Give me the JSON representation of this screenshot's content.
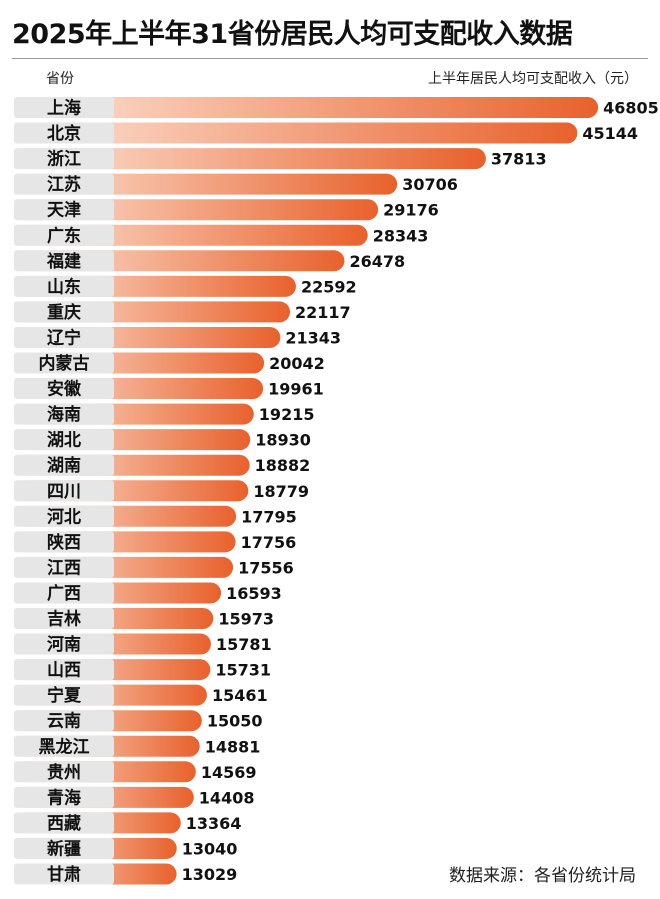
{
  "title": "2025年上半年31省份居民人均可支配收入数据",
  "header": {
    "category_label": "省份",
    "value_label": "上半年居民人均可支配收入（元）"
  },
  "source": "数据来源：各省份统计局",
  "colors": {
    "bar_start": "#fde6d8",
    "bar_end": "#e8612c",
    "label_bg": "#e6e6e6",
    "text": "#111111"
  },
  "chart_data": {
    "type": "bar",
    "orientation": "horizontal",
    "title": "2025年上半年31省份居民人均可支配收入数据",
    "xlabel": "省份",
    "ylabel": "上半年居民人均可支配收入（元）",
    "grid": false,
    "categories": [
      "上海",
      "北京",
      "浙江",
      "江苏",
      "天津",
      "广东",
      "福建",
      "山东",
      "重庆",
      "辽宁",
      "内蒙古",
      "安徽",
      "海南",
      "湖北",
      "湖南",
      "四川",
      "河北",
      "陕西",
      "江西",
      "广西",
      "吉林",
      "河南",
      "山西",
      "宁夏",
      "云南",
      "黑龙江",
      "贵州",
      "青海",
      "西藏",
      "新疆",
      "甘肃"
    ],
    "values": [
      46805,
      45144,
      37813,
      30706,
      29176,
      28343,
      26478,
      22592,
      22117,
      21343,
      20042,
      19961,
      19215,
      18930,
      18882,
      18779,
      17795,
      17756,
      17556,
      16593,
      15973,
      15781,
      15731,
      15461,
      15050,
      14881,
      14569,
      14408,
      13364,
      13040,
      13029
    ],
    "data_labels": [
      "46805",
      "45144",
      "37813",
      "30706",
      "29176",
      "28343",
      "26478",
      "22592",
      "22117",
      "21343",
      "20042",
      "19961",
      "19215",
      "18930",
      "18882",
      "18779",
      "17795",
      "17756",
      "17556",
      "16593",
      "15973",
      "15781",
      "15731",
      "15461",
      "15050",
      "14881",
      "14569",
      "14408",
      "13364",
      "13040",
      "13029"
    ]
  }
}
